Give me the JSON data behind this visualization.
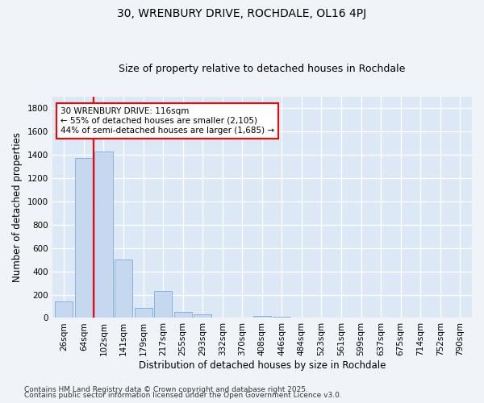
{
  "title1": "30, WRENBURY DRIVE, ROCHDALE, OL16 4PJ",
  "title2": "Size of property relative to detached houses in Rochdale",
  "xlabel": "Distribution of detached houses by size in Rochdale",
  "ylabel": "Number of detached properties",
  "categories": [
    "26sqm",
    "64sqm",
    "102sqm",
    "141sqm",
    "179sqm",
    "217sqm",
    "255sqm",
    "293sqm",
    "332sqm",
    "370sqm",
    "408sqm",
    "446sqm",
    "484sqm",
    "523sqm",
    "561sqm",
    "599sqm",
    "637sqm",
    "675sqm",
    "714sqm",
    "752sqm",
    "790sqm"
  ],
  "values": [
    140,
    1370,
    1430,
    500,
    85,
    230,
    50,
    30,
    0,
    0,
    20,
    10,
    0,
    0,
    0,
    0,
    0,
    0,
    0,
    0,
    0
  ],
  "bar_color": "#c5d8f0",
  "bar_edge_color": "#7aacd6",
  "vline_x_idx": 1.5,
  "vline_color": "red",
  "annotation_text": "30 WRENBURY DRIVE: 116sqm\n← 55% of detached houses are smaller (2,105)\n44% of semi-detached houses are larger (1,685) →",
  "annotation_box_color": "white",
  "annotation_box_edge_color": "red",
  "ylim": [
    0,
    1900
  ],
  "yticks": [
    0,
    200,
    400,
    600,
    800,
    1000,
    1200,
    1400,
    1600,
    1800
  ],
  "bg_color": "#f0f4f8",
  "plot_bg_color": "#dce8f5",
  "footer1": "Contains HM Land Registry data © Crown copyright and database right 2025.",
  "footer2": "Contains public sector information licensed under the Open Government Licence v3.0.",
  "title_fontsize": 10,
  "subtitle_fontsize": 9,
  "xlabel_fontsize": 8.5,
  "ylabel_fontsize": 8.5,
  "tick_fontsize": 7.5,
  "footer_fontsize": 6.5,
  "annot_fontsize": 7.5
}
